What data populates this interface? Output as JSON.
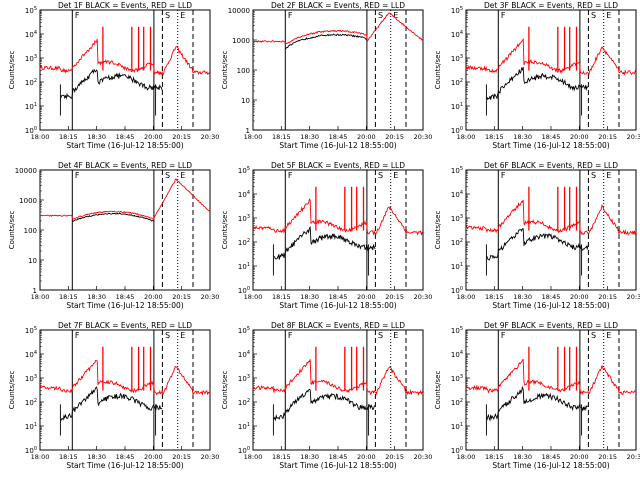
{
  "panel_title_suffix": "BLACK = Events, RED = LLD",
  "x_title": "Start Time (16-Jul-12 18:55:00)",
  "y_title": "Counts/sec",
  "x_tick_labels": [
    "18:00",
    "18:15",
    "18:30",
    "18:45",
    "20:00",
    "20:15",
    "20:30"
  ],
  "colors": {
    "events": "#000000",
    "lld": "#ff0000"
  },
  "chart_data": [
    {
      "type": "line",
      "title": "Det 1F",
      "yscale": "log",
      "ylim": [
        1,
        100000
      ],
      "ytick_labels": [
        "10^0",
        "10^1",
        "10^2",
        "10^3",
        "10^4",
        "10^5"
      ],
      "ytick_values": [
        1,
        10,
        100,
        1000,
        10000,
        100000
      ],
      "markers": [
        "F",
        "S",
        "E"
      ],
      "style": "bursty"
    },
    {
      "type": "line",
      "title": "Det 2F",
      "yscale": "log",
      "ylim": [
        1,
        10000
      ],
      "ytick_labels": [
        "1",
        "10",
        "100",
        "1000",
        "10000"
      ],
      "ytick_values": [
        1,
        10,
        100,
        1000,
        10000
      ],
      "markers": [
        "F",
        "S",
        "E"
      ],
      "style": "smooth-high"
    },
    {
      "type": "line",
      "title": "Det 3F",
      "yscale": "log",
      "ylim": [
        1,
        100000
      ],
      "ytick_labels": [
        "10^0",
        "10^1",
        "10^2",
        "10^3",
        "10^4",
        "10^5"
      ],
      "ytick_values": [
        1,
        10,
        100,
        1000,
        10000,
        100000
      ],
      "markers": [
        "F",
        "S",
        "E"
      ],
      "style": "bursty"
    },
    {
      "type": "line",
      "title": "Det 4F",
      "yscale": "log",
      "ylim": [
        1,
        10000
      ],
      "ytick_labels": [
        "1",
        "10",
        "100",
        "1000",
        "10000"
      ],
      "ytick_values": [
        1,
        10,
        100,
        1000,
        10000
      ],
      "markers": [
        "F",
        "S",
        "E"
      ],
      "style": "smooth"
    },
    {
      "type": "line",
      "title": "Det 5F",
      "yscale": "log",
      "ylim": [
        1,
        100000
      ],
      "ytick_labels": [
        "10^0",
        "10^1",
        "10^2",
        "10^3",
        "10^4",
        "10^5"
      ],
      "ytick_values": [
        1,
        10,
        100,
        1000,
        10000,
        100000
      ],
      "markers": [
        "F",
        "S",
        "E"
      ],
      "style": "bursty"
    },
    {
      "type": "line",
      "title": "Det 6F",
      "yscale": "log",
      "ylim": [
        1,
        100000
      ],
      "ytick_labels": [
        "10^0",
        "10^1",
        "10^2",
        "10^3",
        "10^4",
        "10^5"
      ],
      "ytick_values": [
        1,
        10,
        100,
        1000,
        10000,
        100000
      ],
      "markers": [
        "F",
        "S",
        "E"
      ],
      "style": "bursty"
    },
    {
      "type": "line",
      "title": "Det 7F",
      "yscale": "log",
      "ylim": [
        1,
        100000
      ],
      "ytick_labels": [
        "10^0",
        "10^1",
        "10^2",
        "10^3",
        "10^4",
        "10^5"
      ],
      "ytick_values": [
        1,
        10,
        100,
        1000,
        10000,
        100000
      ],
      "markers": [
        "F",
        "S",
        "E"
      ],
      "style": "bursty"
    },
    {
      "type": "line",
      "title": "Det 8F",
      "yscale": "log",
      "ylim": [
        1,
        100000
      ],
      "ytick_labels": [
        "10^0",
        "10^1",
        "10^2",
        "10^3",
        "10^4",
        "10^5"
      ],
      "ytick_values": [
        1,
        10,
        100,
        1000,
        10000,
        100000
      ],
      "markers": [
        "F",
        "S",
        "E"
      ],
      "style": "bursty"
    },
    {
      "type": "line",
      "title": "Det 9F",
      "yscale": "log",
      "ylim": [
        1,
        100000
      ],
      "ytick_labels": [
        "10^0",
        "10^1",
        "10^2",
        "10^3",
        "10^4",
        "10^5"
      ],
      "ytick_values": [
        1,
        10,
        100,
        1000,
        10000,
        100000
      ],
      "markers": [
        "F",
        "S",
        "E"
      ],
      "style": "bursty"
    }
  ]
}
